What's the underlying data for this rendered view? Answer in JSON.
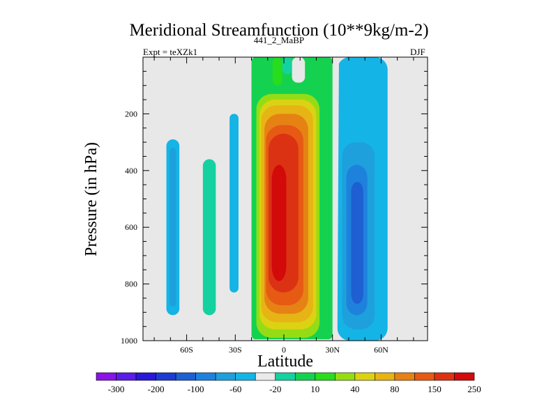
{
  "chart_data": {
    "type": "heatmap",
    "title": "Meridional Streamfunction (10**9kg/m-2)",
    "left_subtitle": "Expt = teXZk1",
    "center_subtitle": "441_2_MaBP",
    "right_subtitle": "DJF",
    "xlabel": "Latitude",
    "ylabel": "Pressure (in hPa)",
    "xlim": [
      -90,
      90
    ],
    "ylim": [
      1000,
      0
    ],
    "x_ticks": [
      {
        "value": -60,
        "label": "60S"
      },
      {
        "value": -30,
        "label": "30S"
      },
      {
        "value": 0,
        "label": "0"
      },
      {
        "value": 30,
        "label": "30N"
      },
      {
        "value": 60,
        "label": "60N"
      }
    ],
    "y_ticks": [
      {
        "value": 200,
        "label": "200"
      },
      {
        "value": 400,
        "label": "400"
      },
      {
        "value": 600,
        "label": "600"
      },
      {
        "value": 800,
        "label": "800"
      },
      {
        "value": 1000,
        "label": "1000"
      }
    ],
    "colorbar": {
      "labels": [
        "-300",
        "-200",
        "-100",
        "-60",
        "-20",
        "10",
        "40",
        "80",
        "150",
        "250"
      ],
      "colors": [
        "#8a14e6",
        "#5a1ee6",
        "#2a18d8",
        "#1e3cd2",
        "#1e5fd2",
        "#1e82dc",
        "#1ea0dc",
        "#14b4e6",
        "#eaeaea",
        "#14d2a0",
        "#14d250",
        "#28dc1e",
        "#96dc14",
        "#dcd214",
        "#e6b414",
        "#e68214",
        "#e65a14",
        "#dc3214",
        "#d20a0a"
      ]
    },
    "features": [
      {
        "name": "Northern blue cell, outer",
        "color": "#14b4e6",
        "lat": [
          34,
          64
        ],
        "p": [
          0,
          990
        ]
      },
      {
        "name": "Northern blue cell, core",
        "color": "#1ea0dc",
        "lat": [
          36,
          55
        ],
        "p": [
          300,
          960
        ]
      },
      {
        "name": "Southern ascending band",
        "color": "#14b4e6",
        "lat": [
          -72,
          -66
        ],
        "p": [
          290,
          910
        ]
      },
      {
        "name": "Southern mid-latitude cell",
        "color": "#14d2a0",
        "lat": [
          -50,
          -42
        ],
        "p": [
          360,
          910
        ]
      },
      {
        "name": "Southern subtropical band",
        "color": "#14b4e6",
        "lat": [
          -33,
          -28
        ],
        "p": [
          200,
          830
        ]
      },
      {
        "name": "Hadley cell, outer",
        "color": "#28dc1e",
        "lat": [
          -18,
          28
        ],
        "p": [
          0,
          995
        ]
      },
      {
        "name": "Hadley cell, core maximum",
        "color": "#d20a0a",
        "lat": [
          -7,
          2
        ],
        "p": [
          380,
          790
        ]
      }
    ]
  }
}
